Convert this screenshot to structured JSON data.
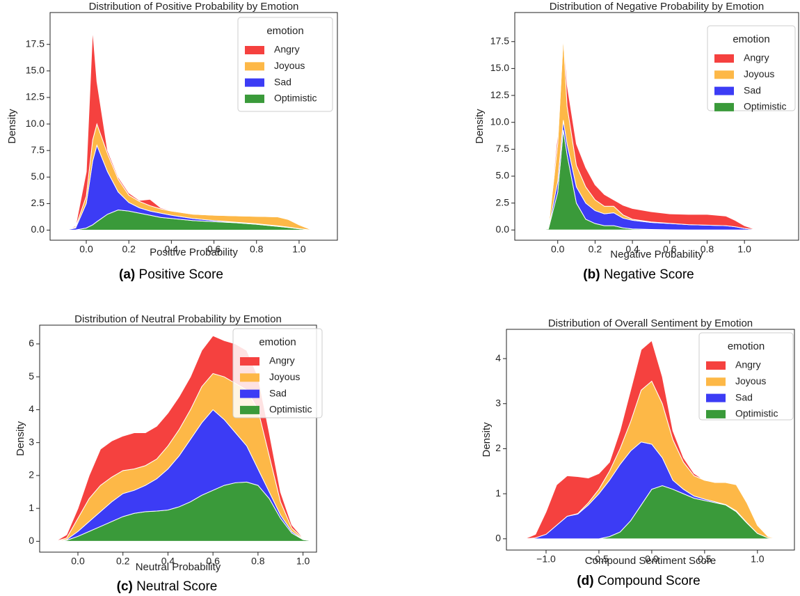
{
  "chart_data": [
    {
      "type": "stacked-area",
      "title": "Distribution of Positive Probability by Emotion",
      "x_label": "Positive Probability",
      "y_label": "Density",
      "caption_label": "(a)",
      "caption": "Positive Score",
      "legend_title": "emotion",
      "legend": "upper right",
      "xlim": [
        -0.17,
        1.18
      ],
      "ylim": [
        -0.95,
        20.5
      ],
      "xticks": [
        {
          "value": 0,
          "label": "0.0"
        },
        0.2,
        0.4,
        0.6,
        0.8,
        {
          "value": 1,
          "label": "1.0"
        }
      ],
      "yticks": [
        {
          "value": 0,
          "label": "0.0"
        },
        2.5,
        {
          "value": 5,
          "label": "5.0"
        },
        7.5,
        {
          "value": 10,
          "label": "10.0"
        },
        12.5,
        {
          "value": 15,
          "label": "15.0"
        },
        17.5
      ],
      "x": [
        -0.1,
        -0.05,
        0,
        0.03,
        0.05,
        0.1,
        0.15,
        0.2,
        0.25,
        0.3,
        0.35,
        0.4,
        0.5,
        0.6,
        0.7,
        0.8,
        0.9,
        0.95,
        1.0,
        1.05,
        1.1
      ],
      "series": [
        {
          "name": "Angry",
          "color": "#f5413f",
          "values": [
            0,
            0.1,
            2.3,
            10.4,
            4.0,
            0.3,
            0.2,
            0.2,
            0.1,
            0.6,
            0.1,
            0.05,
            0,
            0,
            0,
            0,
            0,
            0,
            0,
            0,
            0
          ]
        },
        {
          "name": "Joyous",
          "color": "#fdb847",
          "values": [
            0,
            0.1,
            0.7,
            2.0,
            2.0,
            1.7,
            1.2,
            0.7,
            0.6,
            0.5,
            0.4,
            0.4,
            0.4,
            0.5,
            0.6,
            0.7,
            0.85,
            0.72,
            0.36,
            0.07,
            0
          ]
        },
        {
          "name": "Sad",
          "color": "#3c3cf5",
          "values": [
            0,
            0.18,
            2.3,
            6.0,
            7.2,
            4.0,
            1.7,
            0.8,
            0.5,
            0.4,
            0.4,
            0.3,
            0.2,
            0.1,
            0.05,
            0.05,
            0.05,
            0.03,
            0.02,
            0,
            0
          ]
        },
        {
          "name": "Optimistic",
          "color": "#3a9a3a",
          "values": [
            0,
            0.02,
            0.2,
            0.5,
            0.8,
            1.5,
            1.9,
            1.8,
            1.6,
            1.4,
            1.2,
            1.1,
            0.9,
            0.8,
            0.7,
            0.55,
            0.35,
            0.25,
            0.12,
            0.03,
            0
          ]
        }
      ]
    },
    {
      "type": "stacked-area",
      "title": "Distribution of Negative Probability by Emotion",
      "x_label": "Negative Probability",
      "y_label": "Density",
      "caption_label": "(b)",
      "caption": "Negative Score",
      "legend_title": "emotion",
      "legend": "upper right",
      "xlim": [
        -0.23,
        1.29
      ],
      "ylim": [
        -0.95,
        20.2
      ],
      "xticks": [
        {
          "value": 0,
          "label": "0.0"
        },
        0.2,
        0.4,
        0.6,
        0.8,
        {
          "value": 1,
          "label": "1.0"
        }
      ],
      "yticks": [
        {
          "value": 0,
          "label": "0.0"
        },
        2.5,
        {
          "value": 5,
          "label": "5.0"
        },
        7.5,
        {
          "value": 10,
          "label": "10.0"
        },
        12.5,
        {
          "value": 15,
          "label": "15.0"
        },
        17.5
      ],
      "x": [
        -0.1,
        -0.05,
        0,
        0.03,
        0.05,
        0.1,
        0.15,
        0.2,
        0.25,
        0.3,
        0.35,
        0.4,
        0.5,
        0.6,
        0.7,
        0.8,
        0.9,
        0.95,
        1.0,
        1.05,
        1.1
      ],
      "series": [
        {
          "name": "Angry",
          "color": "#f5413f",
          "values": [
            0,
            0.05,
            1.0,
            0.4,
            2.0,
            2.0,
            1.8,
            1.4,
            1.1,
            0.6,
            0.9,
            1.0,
            0.95,
            0.88,
            0.95,
            1.0,
            0.9,
            0.6,
            0.25,
            0.05,
            0
          ]
        },
        {
          "name": "Joyous",
          "color": "#fdb847",
          "values": [
            0,
            0.05,
            3.5,
            7.8,
            3.5,
            2.0,
            1.5,
            1.0,
            0.7,
            0.6,
            0.3,
            0.1,
            0.05,
            0.02,
            0,
            0,
            0,
            0,
            0,
            0,
            0
          ]
        },
        {
          "name": "Sad",
          "color": "#3c3cf5",
          "values": [
            0,
            0.05,
            1.0,
            0.9,
            1.0,
            1.5,
            1.5,
            1.2,
            1.1,
            1.2,
            0.9,
            0.8,
            0.65,
            0.58,
            0.5,
            0.45,
            0.4,
            0.3,
            0.15,
            0.05,
            0
          ]
        },
        {
          "name": "Optimistic",
          "color": "#3a9a3a",
          "values": [
            0,
            0.1,
            3.5,
            9.3,
            7.0,
            2.5,
            1.0,
            0.6,
            0.4,
            0.4,
            0.2,
            0.1,
            0.05,
            0.02,
            0,
            0,
            0,
            0,
            0,
            0,
            0
          ]
        }
      ]
    },
    {
      "type": "stacked-area",
      "title": "Distribution of Neutral Probability by Emotion",
      "x_label": "Neutral Probability",
      "y_label": "Density",
      "caption_label": "(c)",
      "caption": "Neutral Score",
      "legend_title": "emotion",
      "legend": "upper right",
      "xlim": [
        -0.17,
        1.06
      ],
      "ylim": [
        -0.33,
        6.57
      ],
      "xticks": [
        {
          "value": 0,
          "label": "0.0"
        },
        0.2,
        0.4,
        0.6,
        0.8,
        {
          "value": 1,
          "label": "1.0"
        }
      ],
      "yticks": [
        0,
        1,
        2,
        3,
        4,
        5,
        6
      ],
      "x": [
        -0.1,
        -0.05,
        0,
        0.05,
        0.1,
        0.15,
        0.2,
        0.25,
        0.3,
        0.35,
        0.4,
        0.45,
        0.5,
        0.55,
        0.6,
        0.65,
        0.7,
        0.75,
        0.8,
        0.85,
        0.9,
        0.95,
        1.0,
        1.05
      ],
      "series": [
        {
          "name": "Angry",
          "color": "#f5413f",
          "values": [
            0,
            0.1,
            0.3,
            0.7,
            1.1,
            1.1,
            1.05,
            1.1,
            1.0,
            1.0,
            1.0,
            1.0,
            1.0,
            1.1,
            1.15,
            1.1,
            1.2,
            1.2,
            1.0,
            0.7,
            0.3,
            0.1,
            0.02,
            0
          ]
        },
        {
          "name": "Joyous",
          "color": "#fdb847",
          "values": [
            0,
            0.05,
            0.4,
            0.7,
            0.8,
            0.75,
            0.7,
            0.65,
            0.6,
            0.6,
            0.7,
            0.8,
            0.9,
            1.1,
            1.1,
            1.3,
            1.5,
            1.7,
            1.8,
            1.1,
            0.4,
            0.1,
            0.02,
            0
          ]
        },
        {
          "name": "Sad",
          "color": "#3c3cf5",
          "values": [
            0,
            0.02,
            0.15,
            0.3,
            0.45,
            0.6,
            0.7,
            0.7,
            0.8,
            0.98,
            1.25,
            1.55,
            1.9,
            2.2,
            2.45,
            2.0,
            1.52,
            1.1,
            0.5,
            0.2,
            0.1,
            0.05,
            0.01,
            0
          ]
        },
        {
          "name": "Optimistic",
          "color": "#3a9a3a",
          "values": [
            0,
            0.03,
            0.15,
            0.3,
            0.45,
            0.6,
            0.75,
            0.85,
            0.9,
            0.92,
            0.95,
            1.05,
            1.2,
            1.4,
            1.55,
            1.7,
            1.78,
            1.8,
            1.7,
            1.3,
            0.7,
            0.25,
            0.05,
            0
          ]
        }
      ]
    },
    {
      "type": "stacked-area",
      "title": "Distribution of Overall Sentiment by Emotion",
      "x_label": "Compound Sentiment Score",
      "y_label": "Density",
      "caption_label": "(d)",
      "caption": "Compound Score",
      "legend_title": "emotion",
      "legend": "upper right",
      "xlim": [
        -1.375,
        1.35
      ],
      "ylim": [
        -0.25,
        4.65
      ],
      "xticks": [
        {
          "value": -1,
          "label": "−1.0"
        },
        {
          "value": -0.5,
          "label": "−0.5"
        },
        {
          "value": 0,
          "label": "0.0"
        },
        0.5,
        {
          "value": 1,
          "label": "1.0"
        }
      ],
      "yticks": [
        0,
        1,
        2,
        3,
        4
      ],
      "x": [
        -1.2,
        -1.1,
        -1.0,
        -0.9,
        -0.8,
        -0.7,
        -0.6,
        -0.5,
        -0.4,
        -0.3,
        -0.2,
        -0.1,
        0,
        0.1,
        0.2,
        0.3,
        0.4,
        0.5,
        0.6,
        0.7,
        0.8,
        0.9,
        1.0,
        1.1,
        1.2
      ],
      "series": [
        {
          "name": "Angry",
          "color": "#f5413f",
          "values": [
            0,
            0.08,
            0.5,
            0.9,
            0.9,
            0.82,
            0.55,
            0.35,
            0.2,
            0.4,
            0.7,
            0.9,
            0.9,
            0.6,
            0.2,
            0.1,
            0.05,
            0,
            0,
            0,
            0,
            0,
            0,
            0,
            0
          ]
        },
        {
          "name": "Joyous",
          "color": "#fdb847",
          "values": [
            0,
            0,
            0,
            0,
            0,
            0.01,
            0.05,
            0.1,
            0.2,
            0.35,
            0.65,
            1.15,
            1.4,
            1.2,
            0.9,
            0.6,
            0.45,
            0.42,
            0.43,
            0.49,
            0.58,
            0.44,
            0.18,
            0.03,
            0
          ]
        },
        {
          "name": "Sad",
          "color": "#3c3cf5",
          "values": [
            0,
            0.02,
            0.1,
            0.3,
            0.5,
            0.55,
            0.75,
            1.0,
            1.25,
            1.5,
            1.55,
            1.4,
            1.0,
            0.62,
            0.2,
            0.1,
            0.05,
            0.03,
            0.02,
            0.01,
            0.02,
            0.01,
            0,
            0,
            0
          ]
        },
        {
          "name": "Optimistic",
          "color": "#3a9a3a",
          "values": [
            0,
            0,
            0,
            0,
            0,
            0,
            0,
            0,
            0.05,
            0.15,
            0.4,
            0.75,
            1.1,
            1.18,
            1.1,
            1.0,
            0.9,
            0.85,
            0.8,
            0.75,
            0.6,
            0.35,
            0.12,
            0.02,
            0
          ]
        }
      ]
    }
  ]
}
